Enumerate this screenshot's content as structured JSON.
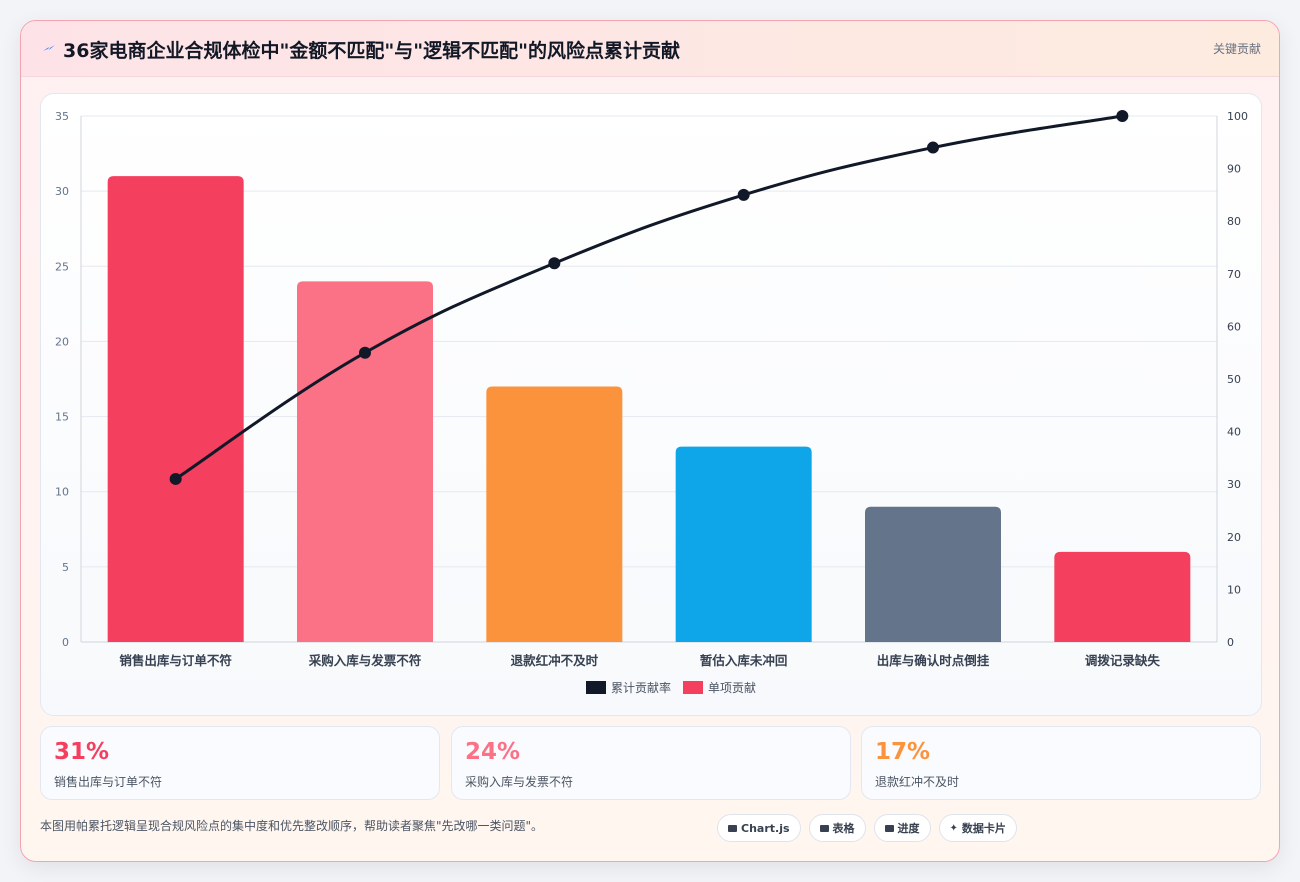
{
  "header": {
    "title": "36家电商企业合规体检中\"金额不匹配\"与\"逻辑不匹配\"的风险点累计贡献",
    "badge": "关键贡献"
  },
  "colors": {
    "line": "#111827",
    "bars": [
      "#f43f5e",
      "#fb7185",
      "#fb923c",
      "#0ea5e9",
      "#64748b",
      "#f43f5e"
    ],
    "grid": "#e5e9f0",
    "axis_text": "#64748b"
  },
  "chart_data": {
    "type": "bar",
    "categories": [
      "销售出库与订单不符",
      "采购入库与发票不符",
      "退款红冲不及时",
      "暂估入库未冲回",
      "出库与确认时点倒挂",
      "调拨记录缺失"
    ],
    "series": [
      {
        "name": "单项贡献",
        "type": "bar",
        "axis": "left",
        "values": [
          31,
          24,
          17,
          13,
          9,
          6
        ]
      },
      {
        "name": "累计贡献率",
        "type": "line",
        "axis": "right",
        "values": [
          31,
          55,
          72,
          85,
          94,
          100
        ]
      }
    ],
    "ylim_left": [
      0,
      35
    ],
    "yticks_left": [
      0,
      5,
      10,
      15,
      20,
      25,
      30,
      35
    ],
    "ylim_right": [
      0,
      100
    ],
    "yticks_right": [
      0,
      10,
      20,
      30,
      40,
      50,
      60,
      70,
      80,
      90,
      100
    ],
    "grid": true,
    "legend_position": "bottom",
    "legend": [
      "累计贡献率",
      "单项贡献"
    ]
  },
  "stats": [
    {
      "value": "31%",
      "label": "销售出库与订单不符",
      "color": "#f43f5e"
    },
    {
      "value": "24%",
      "label": "采购入库与发票不符",
      "color": "#fb7185"
    },
    {
      "value": "17%",
      "label": "退款红冲不及时",
      "color": "#fb923c"
    }
  ],
  "footer": {
    "note": "本图用帕累托逻辑呈现合规风险点的集中度和优先整改顺序，帮助读者聚焦\"先改哪一类问题\"。",
    "chips": [
      "Chart.js",
      "表格",
      "进度",
      "数据卡片"
    ]
  }
}
